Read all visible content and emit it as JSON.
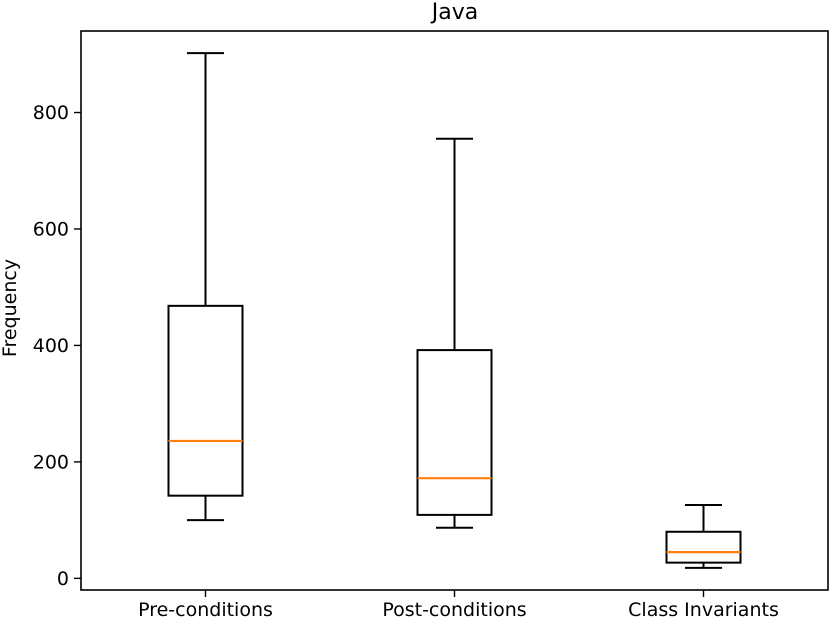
{
  "chart_data": {
    "type": "boxplot",
    "title": "Java",
    "xlabel": "",
    "ylabel": "Frequency",
    "ylim": [
      -20,
      940
    ],
    "yticks": [
      0,
      200,
      400,
      600,
      800
    ],
    "categories": [
      "Pre-conditions",
      "Post-conditions",
      "Class Invariants"
    ],
    "boxes": [
      {
        "name": "Pre-conditions",
        "whisker_low": 100,
        "q1": 142,
        "median": 236,
        "q3": 468,
        "whisker_high": 902
      },
      {
        "name": "Post-conditions",
        "whisker_low": 87,
        "q1": 109,
        "median": 172,
        "q3": 392,
        "whisker_high": 755
      },
      {
        "name": "Class Invariants",
        "whisker_low": 18,
        "q1": 27,
        "median": 45,
        "q3": 80,
        "whisker_high": 126
      }
    ],
    "grid": false,
    "colors": {
      "box": "#000000",
      "median": "#ff7f0e",
      "axes": "#000000"
    }
  }
}
